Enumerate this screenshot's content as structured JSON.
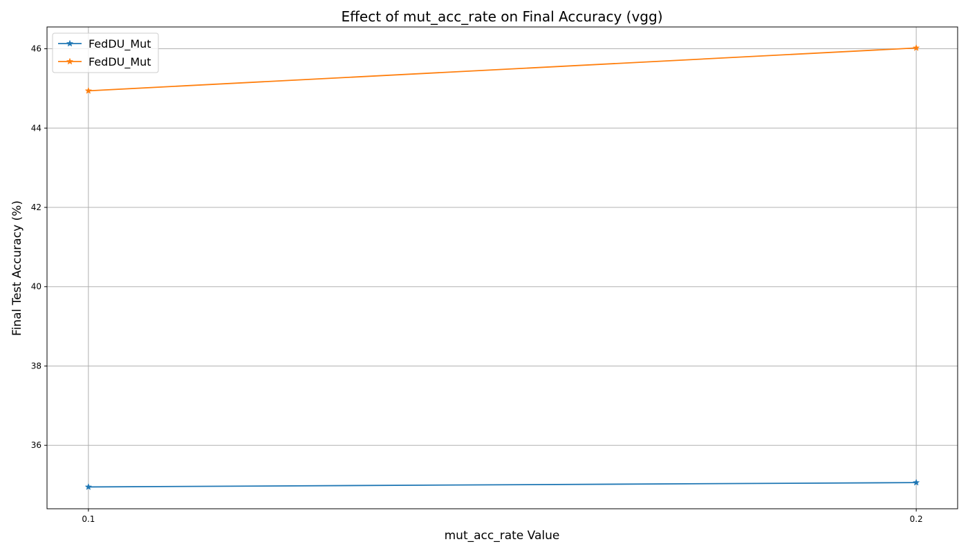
{
  "chart_data": {
    "type": "line",
    "title": "Effect of mut_acc_rate on Final Accuracy (vgg)",
    "xlabel": "mut_acc_rate Value",
    "ylabel": "Final Test Accuracy (%)",
    "x": [
      0.1,
      0.2
    ],
    "x_tick_labels": [
      "0.1",
      "0.2"
    ],
    "xlim": [
      0.095,
      0.205
    ],
    "ylim": [
      34.4,
      46.55
    ],
    "y_ticks": [
      36,
      38,
      40,
      42,
      44,
      46
    ],
    "y_tick_labels": [
      "36",
      "38",
      "40",
      "42",
      "44",
      "46"
    ],
    "grid": true,
    "legend_position": "upper-left",
    "marker": "star",
    "series": [
      {
        "name": "FedDU_Mut",
        "values": [
          34.95,
          35.06
        ],
        "color": "#1f77b4"
      },
      {
        "name": "FedDU_Mut",
        "values": [
          44.94,
          46.02
        ],
        "color": "#ff7f0e"
      }
    ]
  }
}
